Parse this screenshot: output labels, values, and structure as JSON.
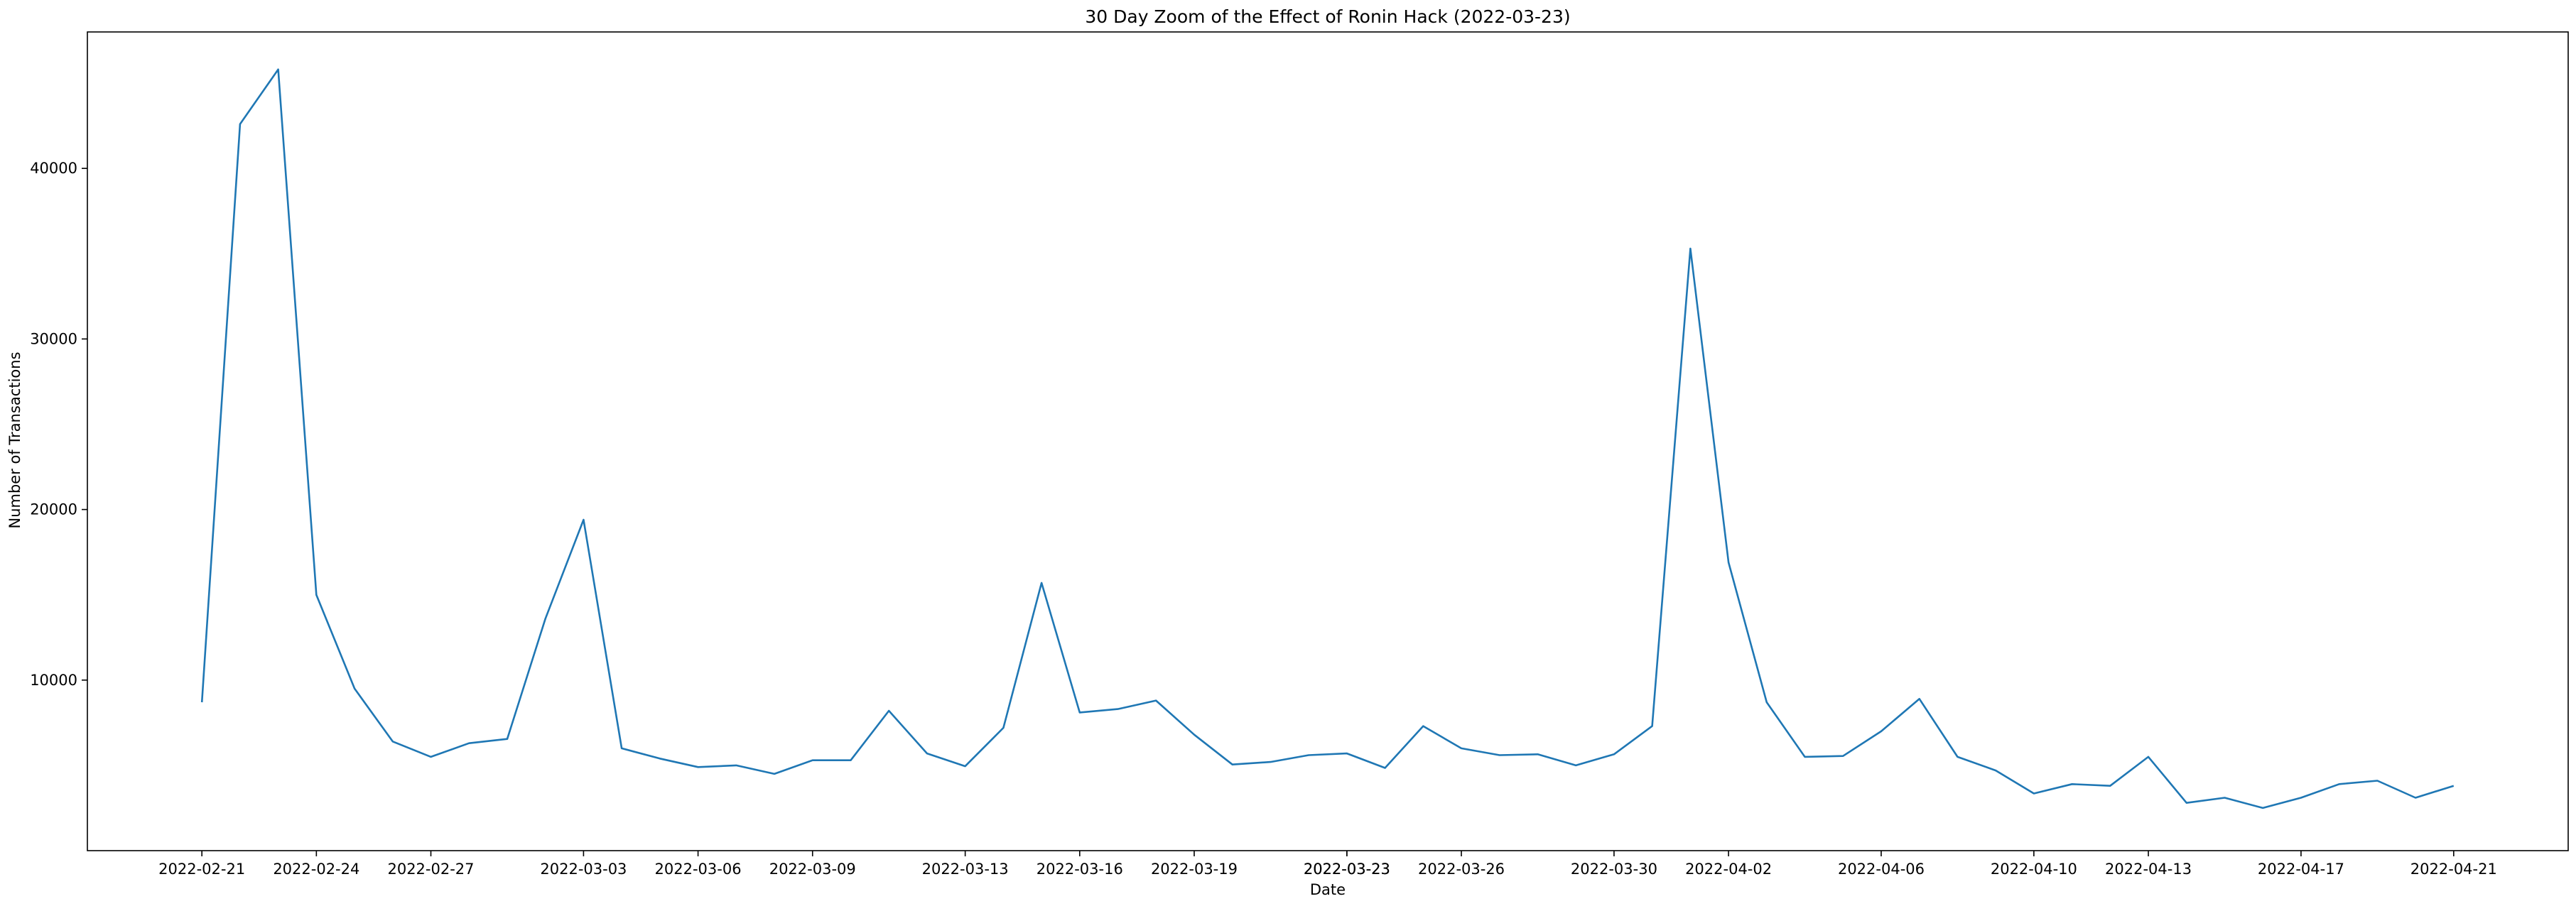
{
  "chart_data": {
    "type": "line",
    "title": "30 Day Zoom of the Effect of Ronin Hack (2022-03-23)",
    "xlabel": "Date",
    "ylabel": "Number of Transactions",
    "x_axis_type": "date",
    "xlim": [
      "2022-02-18",
      "2022-04-24"
    ],
    "ylim": [
      0,
      48000
    ],
    "x_ticks": [
      "2022-02-21",
      "2022-02-24",
      "2022-02-27",
      "2022-03-03",
      "2022-03-06",
      "2022-03-09",
      "2022-03-13",
      "2022-03-16",
      "2022-03-19",
      "2022-03-23",
      "2022-03-23",
      "2022-03-26",
      "2022-03-30",
      "2022-04-02",
      "2022-04-06",
      "2022-04-10",
      "2022-04-13",
      "2022-04-17",
      "2022-04-21"
    ],
    "y_ticks": [
      10000,
      20000,
      30000,
      40000
    ],
    "grid": false,
    "legend": "none",
    "series": [
      {
        "color": "#1f77b4",
        "points": [
          {
            "x": "2022-02-21",
            "y": 8700
          },
          {
            "x": "2022-02-22",
            "y": 42600
          },
          {
            "x": "2022-02-23",
            "y": 45800
          },
          {
            "x": "2022-02-24",
            "y": 15000
          },
          {
            "x": "2022-02-25",
            "y": 9500
          },
          {
            "x": "2022-02-26",
            "y": 6400
          },
          {
            "x": "2022-02-27",
            "y": 5500
          },
          {
            "x": "2022-02-28",
            "y": 6300
          },
          {
            "x": "2022-03-01",
            "y": 6550
          },
          {
            "x": "2022-03-02",
            "y": 13600
          },
          {
            "x": "2022-03-03",
            "y": 19400
          },
          {
            "x": "2022-03-04",
            "y": 6000
          },
          {
            "x": "2022-03-05",
            "y": 5400
          },
          {
            "x": "2022-03-06",
            "y": 4900
          },
          {
            "x": "2022-03-07",
            "y": 5000
          },
          {
            "x": "2022-03-08",
            "y": 4500
          },
          {
            "x": "2022-03-09",
            "y": 5300
          },
          {
            "x": "2022-03-10",
            "y": 5300
          },
          {
            "x": "2022-03-11",
            "y": 8200
          },
          {
            "x": "2022-03-12",
            "y": 5700
          },
          {
            "x": "2022-03-13",
            "y": 4950
          },
          {
            "x": "2022-03-14",
            "y": 7200
          },
          {
            "x": "2022-03-15",
            "y": 15700
          },
          {
            "x": "2022-03-16",
            "y": 8100
          },
          {
            "x": "2022-03-17",
            "y": 8300
          },
          {
            "x": "2022-03-18",
            "y": 8800
          },
          {
            "x": "2022-03-19",
            "y": 6800
          },
          {
            "x": "2022-03-20",
            "y": 5050
          },
          {
            "x": "2022-03-21",
            "y": 5200
          },
          {
            "x": "2022-03-22",
            "y": 5600
          },
          {
            "x": "2022-03-23",
            "y": 5700
          },
          {
            "x": "2022-03-24",
            "y": 4850
          },
          {
            "x": "2022-03-25",
            "y": 7300
          },
          {
            "x": "2022-03-26",
            "y": 6000
          },
          {
            "x": "2022-03-27",
            "y": 5600
          },
          {
            "x": "2022-03-28",
            "y": 5650
          },
          {
            "x": "2022-03-29",
            "y": 5000
          },
          {
            "x": "2022-03-30",
            "y": 5650
          },
          {
            "x": "2022-03-31",
            "y": 7300
          },
          {
            "x": "2022-04-01",
            "y": 35300
          },
          {
            "x": "2022-04-02",
            "y": 16900
          },
          {
            "x": "2022-04-03",
            "y": 8700
          },
          {
            "x": "2022-04-04",
            "y": 5500
          },
          {
            "x": "2022-04-05",
            "y": 5550
          },
          {
            "x": "2022-04-06",
            "y": 7000
          },
          {
            "x": "2022-04-07",
            "y": 8900
          },
          {
            "x": "2022-04-08",
            "y": 5500
          },
          {
            "x": "2022-04-09",
            "y": 4700
          },
          {
            "x": "2022-04-10",
            "y": 3350
          },
          {
            "x": "2022-04-11",
            "y": 3900
          },
          {
            "x": "2022-04-12",
            "y": 3800
          },
          {
            "x": "2022-04-13",
            "y": 5500
          },
          {
            "x": "2022-04-14",
            "y": 2800
          },
          {
            "x": "2022-04-15",
            "y": 3100
          },
          {
            "x": "2022-04-16",
            "y": 2500
          },
          {
            "x": "2022-04-17",
            "y": 3100
          },
          {
            "x": "2022-04-18",
            "y": 3900
          },
          {
            "x": "2022-04-19",
            "y": 4100
          },
          {
            "x": "2022-04-20",
            "y": 3100
          },
          {
            "x": "2022-04-21",
            "y": 3800
          }
        ]
      }
    ]
  }
}
